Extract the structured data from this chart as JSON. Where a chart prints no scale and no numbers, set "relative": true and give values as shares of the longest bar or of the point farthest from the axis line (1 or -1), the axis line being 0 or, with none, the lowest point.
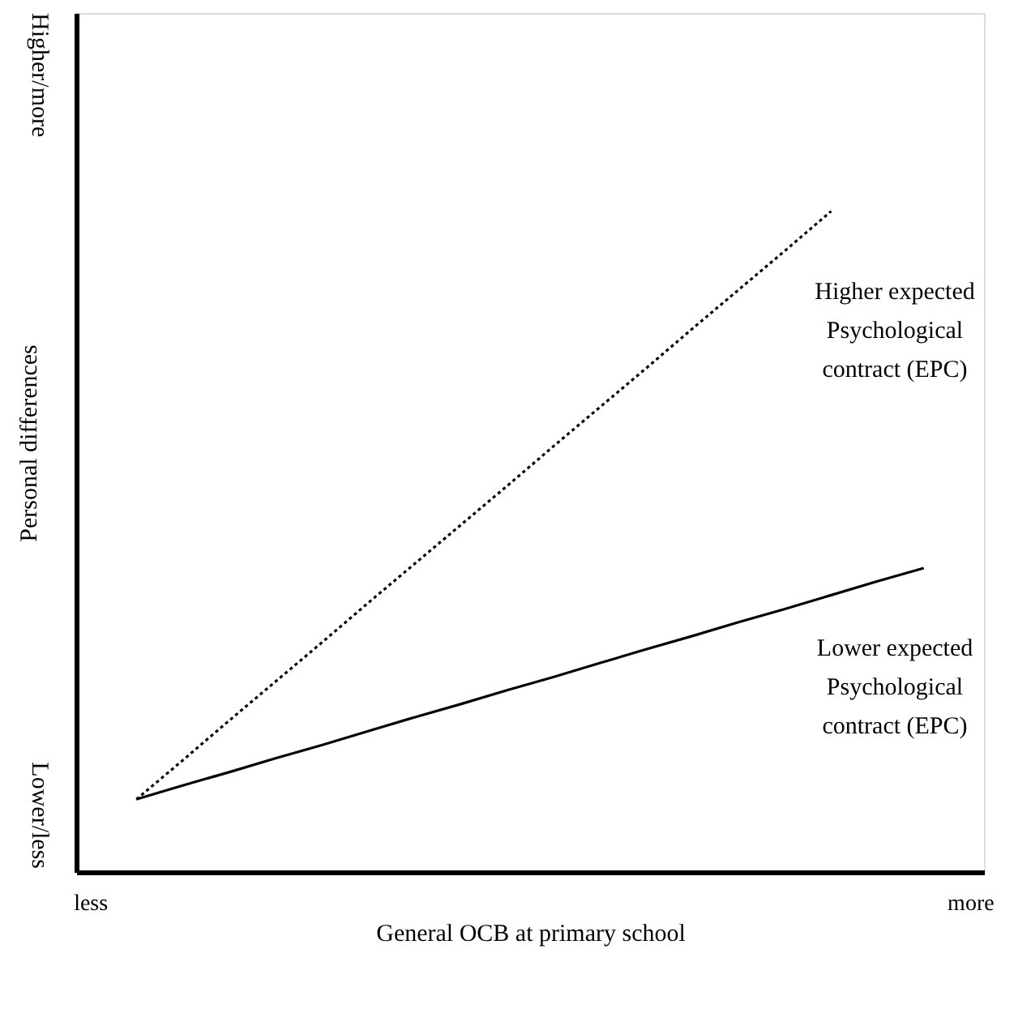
{
  "chart_data": {
    "type": "line",
    "relative": true,
    "xlabel": "General OCB at primary school",
    "ylabel": "Personal differences",
    "categories": [
      "less",
      null,
      null,
      null,
      null,
      null,
      null,
      null,
      null,
      null,
      null,
      null,
      null,
      null,
      null,
      null,
      null,
      null,
      null,
      "more"
    ],
    "annotations": [
      "Higher/more",
      "Lower/less"
    ],
    "grid": false,
    "marker": "none",
    "series": [
      {
        "name": "Higher expected Psychological contract (EPC)",
        "color": "#000000",
        "line_style": "dotted",
        "values": [
          null,
          0.11,
          0.169,
          0.229,
          0.288,
          0.347,
          0.407,
          0.466,
          0.525,
          0.584,
          0.644,
          0.703,
          0.762,
          0.822,
          0.881,
          0.94,
          1.0,
          null,
          null,
          null
        ]
      },
      {
        "name": "Lower expected Psychological contract (EPC)",
        "color": "#000000",
        "line_style": "solid",
        "values": [
          null,
          0.11,
          0.131,
          0.151,
          0.172,
          0.192,
          0.213,
          0.234,
          0.254,
          0.275,
          0.295,
          0.316,
          0.337,
          0.357,
          0.378,
          0.398,
          0.419,
          0.44,
          0.46,
          null
        ]
      }
    ]
  }
}
